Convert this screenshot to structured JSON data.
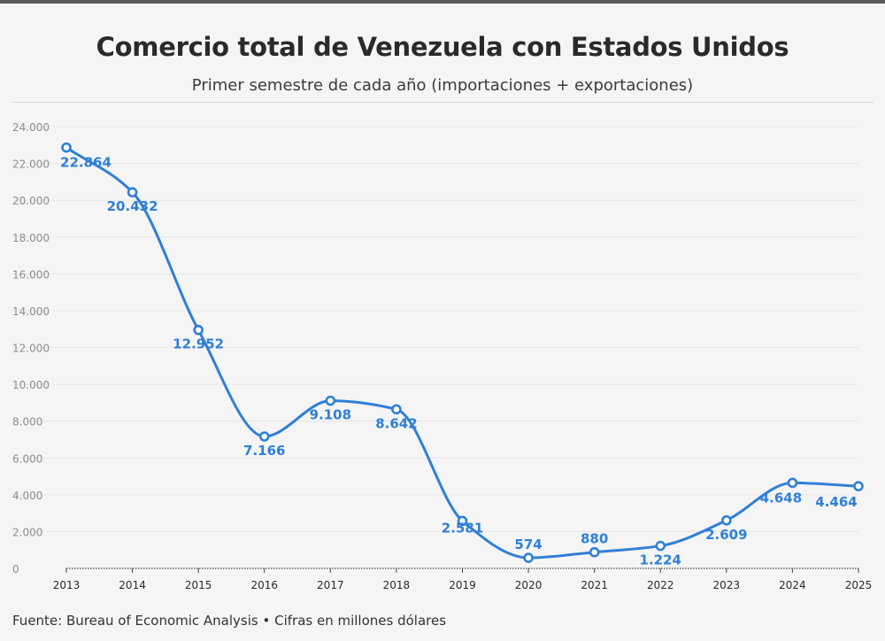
{
  "header": {
    "title": "Comercio total de Venezuela con Estados Unidos",
    "subtitle": "Primer semestre de cada año (importaciones + exportaciones)"
  },
  "footer": {
    "text": "Fuente: Bureau of Economic Analysis • Cifras en millones dólares"
  },
  "colors": {
    "line": "#2f7fd8",
    "marker_fill": "#ffffff",
    "grid": "#e6e6e6",
    "baseline": "#444444"
  },
  "chart_data": {
    "type": "line",
    "title": "Comercio total de Venezuela con Estados Unidos",
    "subtitle": "Primer semestre de cada año (importaciones + exportaciones)",
    "xlabel": "",
    "ylabel": "",
    "x": [
      "2013",
      "2014",
      "2015",
      "2016",
      "2017",
      "2018",
      "2019",
      "2020",
      "2021",
      "2022",
      "2023",
      "2024",
      "2025"
    ],
    "series": [
      {
        "values": [
          22864,
          20432,
          12952,
          7166,
          9108,
          8642,
          2581,
          574,
          880,
          1224,
          2609,
          4648,
          4464
        ],
        "labels": [
          "22.864",
          "20.432",
          "12.952",
          "7.166",
          "9.108",
          "8.642",
          "2.581",
          "574",
          "880",
          "1.224",
          "2.609",
          "4.648",
          "4.464"
        ]
      }
    ],
    "ylim": [
      0,
      24000
    ],
    "yticks": [
      0,
      2000,
      4000,
      6000,
      8000,
      10000,
      12000,
      14000,
      16000,
      18000,
      20000,
      22000,
      24000
    ],
    "ytick_labels": [
      "0",
      "2.000",
      "4.000",
      "6.000",
      "8.000",
      "10.000",
      "12.000",
      "14.000",
      "16.000",
      "18.000",
      "20.000",
      "22.000",
      "24.000"
    ],
    "grid": true,
    "smooth": true,
    "markers": "hollow-circle",
    "legend": "none"
  }
}
